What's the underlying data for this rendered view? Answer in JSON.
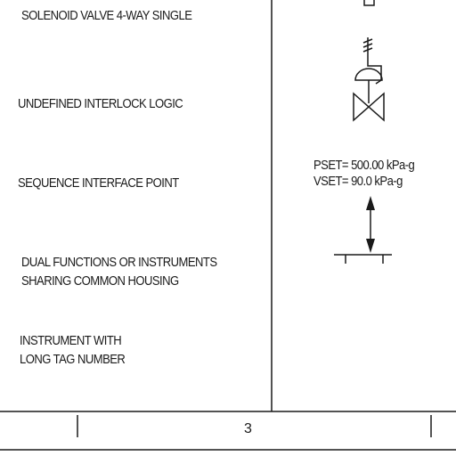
{
  "legend": {
    "rows": [
      {
        "lines": [
          "SOLENOID VALVE 4-WAY SINGLE"
        ]
      },
      {
        "lines": [
          "UNDEFINED INTERLOCK LOGIC"
        ]
      },
      {
        "lines": [
          "SEQUENCE INTERFACE POINT"
        ]
      },
      {
        "lines": [
          "DUAL FUNCTIONS OR INSTRUMENTS",
          "SHARING COMMON HOUSING"
        ]
      },
      {
        "lines": [
          "INSTRUMENT WITH",
          "LONG TAG NUMBER"
        ]
      }
    ],
    "setpoints": {
      "pset": "PSET= 500.00 kPa-g",
      "vset": "VSET= 90.0 kPa-g"
    }
  },
  "footer": {
    "sheet_number": "3"
  },
  "colors": {
    "ink": "#1a1a1a",
    "background": "#ffffff"
  }
}
